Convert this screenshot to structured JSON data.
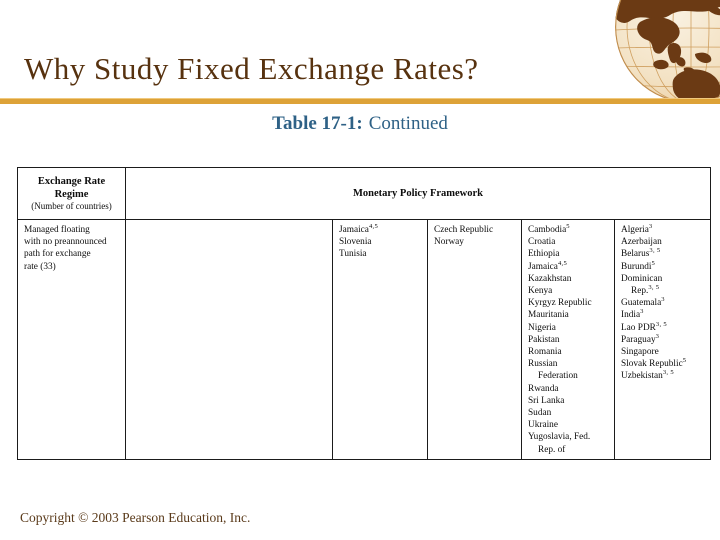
{
  "header": {
    "title": "Why Study Fixed Exchange Rates?",
    "caption": {
      "bold": "Table 17-1:",
      "normal": "Continued"
    }
  },
  "colors": {
    "title_text": "#57320f",
    "accent_bar": "#dda238",
    "caption_text": "#2e6186",
    "table_border": "#1b1b1b",
    "copyright_text": "#5a3a1a",
    "globe_land": "#6b3a14",
    "globe_ocean": "#f3e2c4"
  },
  "icons": {
    "globe": "globe-icon"
  },
  "table": {
    "header_row": {
      "regime_title_line1": "Exchange Rate",
      "regime_title_line2": "Regime",
      "regime_subtitle": "(Number of countries)",
      "framework_title": "Monetary Policy Framework"
    },
    "body_row": {
      "regime_lines": [
        "Managed floating",
        "with no preannounced",
        "path for exchange",
        "rate (33)"
      ],
      "exchange_rate_anchor": [],
      "monetary_aggregate_target": [
        {
          "t": "Jamaica",
          "s": "4,5"
        },
        "Slovenia",
        "Tunisia"
      ],
      "inflation_targeting": [
        "Czech Republic",
        "Norway"
      ],
      "imf_program": [
        {
          "t": "Cambodia",
          "s": "5"
        },
        "Croatia",
        "Ethiopia",
        {
          "t": "Jamaica",
          "s": "4,5"
        },
        "Kazakhstan",
        "Kenya",
        "Kyrgyz Republic",
        "Mauritania",
        "Nigeria",
        "Pakistan",
        "Romania",
        "Russian",
        {
          "t": "Federation",
          "i": true
        },
        "Rwanda",
        "Sri Lanka",
        "Sudan",
        "Ukraine",
        "Yugoslavia, Fed.",
        {
          "t": "Rep. of",
          "i": true
        }
      ],
      "other": [
        {
          "t": "Algeria",
          "s": "3"
        },
        "Azerbaijan",
        {
          "t": "Belarus",
          "s": "3, 5"
        },
        {
          "t": "Burundi",
          "s": "5"
        },
        "Dominican",
        {
          "t": "Rep.",
          "s": "3, 5",
          "i": true
        },
        {
          "t": "Guatemala",
          "s": "3"
        },
        {
          "t": "India",
          "s": "3"
        },
        {
          "t": "Lao PDR",
          "s": "3, 5"
        },
        {
          "t": "Paraguay",
          "s": "3"
        },
        "Singapore",
        {
          "t": "Slovak Republic",
          "s": "5"
        },
        {
          "t": "Uzbekistan",
          "s": "3, 5"
        }
      ]
    }
  },
  "footer": {
    "copyright": "Copyright © 2003 Pearson Education, Inc."
  }
}
